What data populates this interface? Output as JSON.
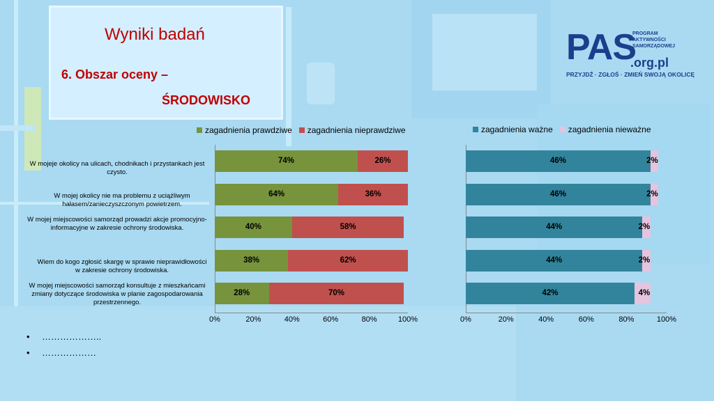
{
  "title": "Wyniki badań",
  "subtitle_line1": "6. Obszar oceny –",
  "subtitle_line2": "ŚRODOWISKO",
  "logo": {
    "main": "PAS",
    "org": ".org.pl",
    "small_lines": [
      "PROGRAM",
      "AKTYWNOŚCI",
      "SAMORZĄDOWEJ"
    ],
    "tagline": "PRZYJDŹ · ZGŁOŚ · ZMIEŃ SWOJĄ OKOLICĘ"
  },
  "colors": {
    "prawdziwe": "#77933c",
    "nieprawdziwe": "#c0504d",
    "wazne": "#31849b",
    "niewazne": "#e6c3de"
  },
  "row_labels": [
    "W mojeje okolicy na ulicach, chodnikach i przystankach jest czysto.",
    "W mojej okolicy nie ma problemu z uciążliwym hałasem/zanieczyszczonym powietrzem.",
    "W mojej miejscowości samorząd prowadzi akcje promocyjno-informacyjne w zakresie ochrony środowiska.",
    "Wiem do kogo zgłosić skargę w sprawie nieprawidłowości w zakresie ochrony środowiska.",
    "W mojej miejscowości samorząd konsultuje z mieszkańcami zmiany dotyczące środowiska w planie zagospodarowania przestrzennego."
  ],
  "chart_data": [
    {
      "type": "bar",
      "orientation": "horizontal",
      "stacked": true,
      "categories": [
        "W mojeje okolicy na ulicach, chodnikach i przystankach jest czysto.",
        "W mojej okolicy nie ma problemu z uciążliwym hałasem/zanieczyszczonym powietrzem.",
        "W mojej miejscowości samorząd prowadzi akcje promocyjno-informacyjne w zakresie ochrony środowiska.",
        "Wiem do kogo zgłosić skargę w sprawie nieprawidłowości w zakresie ochrony środowiska.",
        "W mojej miejscowości samorząd konsultuje z mieszkańcami zmiany dotyczące środowiska w planie zagospodarowania przestrzennego."
      ],
      "series": [
        {
          "name": "zagadnienia prawdziwe",
          "values": [
            74,
            64,
            40,
            38,
            28
          ],
          "labels": [
            "74%",
            "64%",
            "40%",
            "38%",
            "28%"
          ]
        },
        {
          "name": "zagadnienia nieprawdziwe",
          "values": [
            26,
            36,
            58,
            62,
            70
          ],
          "labels": [
            "26%",
            "36%",
            "58%",
            "62%",
            "70%"
          ]
        }
      ],
      "xlim": [
        0,
        100
      ],
      "ticks": [
        "0%",
        "20%",
        "40%",
        "60%",
        "80%",
        "100%"
      ],
      "legend": "top"
    },
    {
      "type": "bar",
      "orientation": "horizontal",
      "stacked": true,
      "categories": [
        "W mojeje okolicy na ulicach, chodnikach i przystankach jest czysto.",
        "W mojej okolicy nie ma problemu z uciążliwym hałasem/zanieczyszczonym powietrzem.",
        "W mojej miejscowości samorząd prowadzi akcje promocyjno-informacyjne w zakresie ochrony środowiska.",
        "Wiem do kogo zgłosić skargę w sprawie nieprawidłowości w zakresie ochrony środowiska.",
        "W mojej miejscowości samorząd konsultuje z mieszkańcami zmiany dotyczące środowiska w planie zagospodarowania przestrzennego."
      ],
      "series": [
        {
          "name": "zagadnienia ważne",
          "values": [
            46,
            46,
            44,
            44,
            42
          ],
          "labels": [
            "46%",
            "46%",
            "44%",
            "44%",
            "42%"
          ]
        },
        {
          "name": "zagadnienia nieważne",
          "values": [
            2,
            2,
            2,
            2,
            4
          ],
          "labels": [
            "2%",
            "2%",
            "2%",
            "2%",
            "4%"
          ]
        }
      ],
      "xlim": [
        0,
        50
      ],
      "ticks": [
        "0%",
        "20%",
        "40%",
        "60%",
        "80%",
        "100%"
      ],
      "legend": "top"
    }
  ],
  "bullets": [
    "………………..",
    "………………"
  ]
}
